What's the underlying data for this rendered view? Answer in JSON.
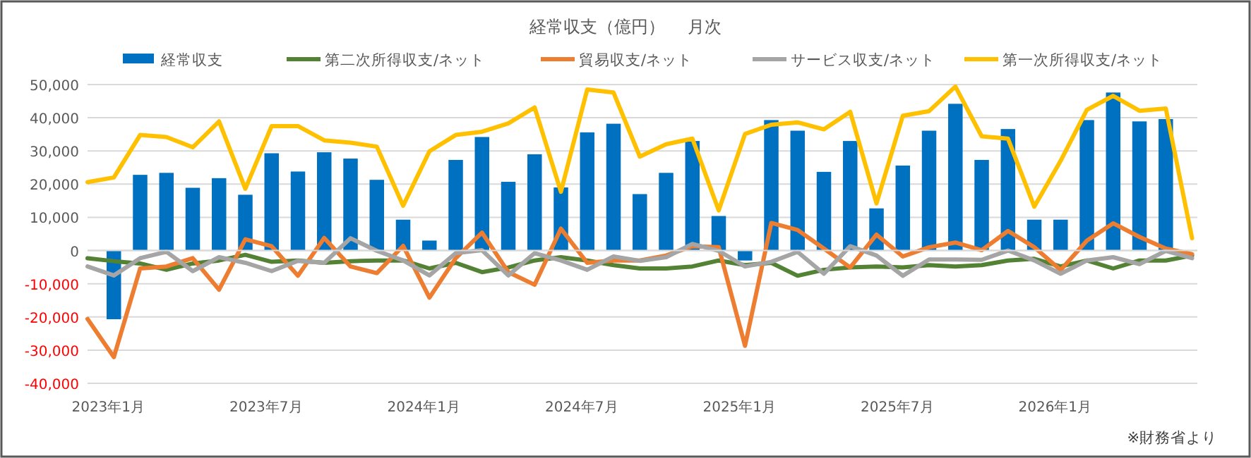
{
  "chart_data": {
    "type": "bar",
    "title": "経常収支（億円）　 月次",
    "legend": "top",
    "grid": "y",
    "categories": [
      null,
      "2023年1月",
      null,
      null,
      null,
      null,
      null,
      "2023年7月",
      null,
      null,
      null,
      null,
      null,
      "2024年1月",
      null,
      null,
      null,
      null,
      null,
      "2024年7月",
      null,
      null,
      null,
      null,
      null,
      "2025年1月",
      null,
      null,
      null,
      null,
      null,
      "2025年7月",
      null,
      null,
      null,
      null,
      null,
      "2026年1月",
      null,
      null,
      null,
      null,
      null
    ],
    "ylim": [
      -40000,
      50000
    ],
    "yticks": [
      {
        "value": -40000,
        "label": "-40,000"
      },
      {
        "value": -30000,
        "label": "-30,000"
      },
      {
        "value": -20000,
        "label": "-20,000"
      },
      {
        "value": -10000,
        "label": "-10,000"
      },
      0,
      {
        "value": 10000,
        "label": "10,000"
      },
      {
        "value": 20000,
        "label": "20,000"
      },
      {
        "value": 30000,
        "label": "30,000"
      },
      {
        "value": 40000,
        "label": "40,000"
      },
      {
        "value": 50000,
        "label": "50,000"
      }
    ],
    "series": [
      {
        "name": "経常収支",
        "color": "#0070c0",
        "values": [
          null,
          -20700,
          22800,
          23400,
          18900,
          21800,
          16800,
          29300,
          23800,
          29600,
          27700,
          21300,
          9300,
          3000,
          27300,
          34200,
          20700,
          29000,
          19000,
          35600,
          38200,
          17000,
          23400,
          33000,
          10400,
          -3000,
          39300,
          36100,
          23700,
          33000,
          12700,
          25600,
          36100,
          44200,
          27300,
          36600,
          9300,
          9300,
          39300,
          47600,
          38900,
          39600,
          null
        ]
      },
      {
        "name": "第二次所得収支/ネット",
        "type": "line",
        "color": "#548235",
        "values": [
          -2300,
          -3200,
          -3900,
          -5800,
          -3900,
          -3000,
          -1300,
          -3400,
          -3000,
          -3700,
          -3200,
          -3000,
          -3000,
          -5400,
          -3700,
          -6500,
          -5100,
          -3000,
          -2000,
          -3000,
          -4400,
          -5400,
          -5400,
          -4800,
          -3000,
          -4400,
          -3700,
          -7600,
          -5800,
          -5100,
          -4800,
          -5100,
          -4400,
          -4800,
          -4400,
          -3000,
          -2500,
          -4800,
          -3000,
          -5400,
          -3000,
          -3000,
          -1500
        ]
      },
      {
        "name": "貿易収支/ネット",
        "type": "line",
        "color": "#ed7d31",
        "values": [
          -20600,
          -32100,
          -5400,
          -4800,
          -2300,
          -11800,
          3400,
          1300,
          -7600,
          3800,
          -4800,
          -6800,
          1400,
          -14200,
          -2300,
          5400,
          -6500,
          -10300,
          6600,
          -3700,
          -3000,
          -3000,
          -1500,
          1300,
          1000,
          -28700,
          8300,
          6200,
          600,
          -5100,
          4800,
          -1800,
          1000,
          2400,
          100,
          5900,
          1000,
          -5900,
          3000,
          8200,
          4100,
          600,
          -1100
        ]
      },
      {
        "name": "サービス収支/ネット",
        "type": "line",
        "color": "#a5a5a5",
        "values": [
          -4800,
          -7500,
          -2300,
          -400,
          -6200,
          -2000,
          -3700,
          -6200,
          -3100,
          -3700,
          3700,
          -100,
          -3000,
          -7500,
          -800,
          100,
          -7500,
          -800,
          -3000,
          -5800,
          -1800,
          -3100,
          -2000,
          2000,
          -100,
          -4800,
          -3400,
          -400,
          -7000,
          1300,
          -1500,
          -7600,
          -2700,
          -2700,
          -2800,
          0,
          -3000,
          -7000,
          -3000,
          -2000,
          -4100,
          -100,
          -2300
        ]
      },
      {
        "name": "第一次所得収支/ネット",
        "type": "line",
        "color": "#ffc000",
        "values": [
          20600,
          22000,
          34800,
          34200,
          31100,
          38900,
          18600,
          37500,
          37500,
          33200,
          32500,
          31300,
          13500,
          29900,
          34800,
          35800,
          38300,
          43100,
          17700,
          48500,
          47600,
          28300,
          32000,
          33700,
          12100,
          35100,
          37900,
          38600,
          36500,
          41800,
          14200,
          40600,
          42000,
          49400,
          34400,
          33700,
          13200,
          27000,
          42400,
          46600,
          42100,
          42800,
          3700
        ]
      }
    ],
    "annotations": [
      "※財務省より"
    ]
  }
}
